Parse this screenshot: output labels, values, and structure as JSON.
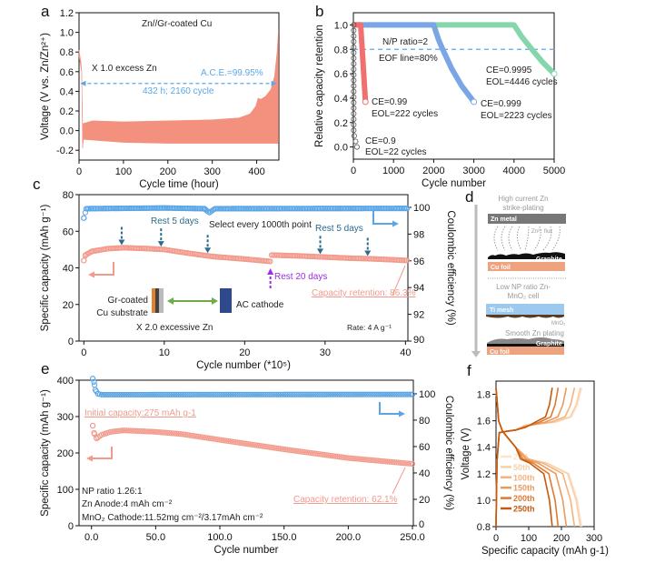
{
  "panel_labels": {
    "a": "a",
    "b": "b",
    "c": "c",
    "d": "d",
    "e": "e",
    "f": "f"
  },
  "chart_data": [
    {
      "panel": "a",
      "type": "area",
      "xlabel": "Cycle time (hour)",
      "ylabel": "Voltage (V vs. Zn/Zn²⁺)",
      "xlim": [
        0,
        450
      ],
      "ylim": [
        -0.3,
        1.2
      ],
      "x_tick_labels": [
        "0",
        "100",
        "200",
        "300",
        "400"
      ],
      "y_tick_labels": [
        "-0.2",
        "0.0",
        "0.2",
        "0.4",
        "0.6",
        "0.8",
        "1.0",
        "1.2"
      ],
      "color": "#f4907e",
      "upper": [
        [
          0,
          0.82
        ],
        [
          4,
          0.7
        ],
        [
          6,
          0.62
        ],
        [
          8,
          0.07
        ],
        [
          30,
          0.1
        ],
        [
          100,
          0.09
        ],
        [
          200,
          0.1
        ],
        [
          300,
          0.11
        ],
        [
          360,
          0.13
        ],
        [
          385,
          0.17
        ],
        [
          398,
          0.25
        ],
        [
          403,
          0.33
        ],
        [
          410,
          0.32
        ],
        [
          420,
          0.35
        ],
        [
          432,
          0.42
        ],
        [
          440,
          0.55
        ],
        [
          446,
          0.8
        ],
        [
          449,
          1.02
        ]
      ],
      "lower": [
        [
          0,
          0.75
        ],
        [
          6,
          0.6
        ],
        [
          8,
          -0.18
        ],
        [
          10,
          -0.09
        ],
        [
          100,
          -0.12
        ],
        [
          200,
          -0.13
        ],
        [
          300,
          -0.13
        ],
        [
          449,
          -0.13
        ]
      ],
      "annotations": {
        "title": "Zn//Gr-coated Cu",
        "excess": "X 1.0 excess Zn",
        "ace": "A.C.E.=99.95%",
        "duration": "432 h; 2160 cycle"
      },
      "arrow_color": "#5aa8e8"
    },
    {
      "panel": "b",
      "type": "line",
      "xlabel": "Cycle number",
      "ylabel": "Relative capacity retention",
      "xlim": [
        0,
        5000
      ],
      "ylim": [
        -0.1,
        1.1
      ],
      "x_tick_labels": [
        "0",
        "1000",
        "2000",
        "3000",
        "4000",
        "5000"
      ],
      "y_tick_labels": [
        "0.0",
        "0.2",
        "0.4",
        "0.6",
        "0.8",
        "1.0"
      ],
      "eol_line": 0.8,
      "series": [
        {
          "ce": "CE=0.9",
          "eol": "EOL=22 cycles",
          "color": "#555555",
          "style": "circles",
          "points": [
            [
              0,
              1
            ],
            [
              22,
              0
            ]
          ]
        },
        {
          "ce": "CE=0.99",
          "eol": "EOL=222 cycles",
          "color": "#f07070",
          "points": [
            [
              0,
              1
            ],
            [
              180,
              1
            ],
            [
              220,
              0.8
            ],
            [
              300,
              0.37
            ]
          ]
        },
        {
          "ce": "CE=0.999",
          "eol": "EOL=2223 cycles",
          "color": "#7ba6e6",
          "points": [
            [
              0,
              1
            ],
            [
              2000,
              1
            ],
            [
              2120,
              0.88
            ],
            [
              2223,
              0.8
            ],
            [
              2450,
              0.64
            ],
            [
              2700,
              0.5
            ],
            [
              3000,
              0.37
            ]
          ]
        },
        {
          "ce": "CE=0.9995",
          "eol": "EOL=4446 cycles",
          "color": "#85d6aa",
          "points": [
            [
              0,
              1
            ],
            [
              4000,
              1
            ],
            [
              4200,
              0.9
            ],
            [
              4446,
              0.8
            ],
            [
              4700,
              0.7
            ],
            [
              5000,
              0.6
            ]
          ]
        }
      ],
      "annotations": {
        "np": "N/P ratio=2",
        "eof": "EOF line=80%"
      }
    },
    {
      "panel": "c",
      "type": "scatter",
      "xlabel": "Cycle number (*10⁵)",
      "ylabel": "Specific capacity (mAh g⁻¹)",
      "y2label": "Coulombic efficiency (%)",
      "xlim": [
        -0.6,
        40.3
      ],
      "ylim": [
        0,
        80
      ],
      "y2lim": [
        90,
        100.95
      ],
      "x_tick_labels": [
        "0",
        "10",
        "20",
        "30",
        "40"
      ],
      "y_tick_labels": [
        "0",
        "20",
        "40",
        "60",
        "80"
      ],
      "y2_tick_labels": [
        "90",
        "92",
        "94",
        "96",
        "98",
        "100"
      ],
      "capacity": [
        [
          0,
          44
        ],
        [
          0.2,
          47
        ],
        [
          1,
          49
        ],
        [
          3,
          50.5
        ],
        [
          5,
          51
        ],
        [
          8,
          50.5
        ],
        [
          10,
          50
        ],
        [
          13,
          48
        ],
        [
          16,
          46.2
        ],
        [
          20,
          44.8
        ],
        [
          23.2,
          43.5
        ],
        [
          23.3,
          47
        ],
        [
          27,
          46.5
        ],
        [
          29.4,
          46
        ],
        [
          33,
          45.3
        ],
        [
          35.3,
          45
        ],
        [
          38,
          44.5
        ],
        [
          40.2,
          44
        ]
      ],
      "coulombic_efficiency": [
        [
          0,
          99.2
        ],
        [
          0.3,
          99.9
        ],
        [
          10,
          99.95
        ],
        [
          15,
          99.9
        ],
        [
          15.6,
          99.6
        ],
        [
          16.3,
          99.9
        ],
        [
          40.2,
          99.92
        ]
      ],
      "capacity_color": "#f29a8c",
      "ce_color": "#5aa5e6",
      "rest_arrows_x": [
        4.7,
        9.6,
        15.4,
        29.4,
        35.3
      ],
      "rest_long_x": 23.2,
      "annotations": {
        "select": "Select every 1000th point",
        "rest1": "Rest 5 days",
        "rest2": "Rest 5 days",
        "rest20": "Rest 20 days",
        "retention": "Capacity retention: 86.3%",
        "anode1": "Gr-coated",
        "anode2": "Cu substrate",
        "cathode": "AC cathode",
        "excess": "X 2.0 excessive Zn",
        "rate": "Rate: 4 A g⁻¹"
      },
      "rest_color": "#2d6b8a",
      "rest20_color": "#9b30e0"
    },
    {
      "panel": "e",
      "type": "scatter",
      "xlabel": "Cycle number",
      "ylabel": "Specific capacity (mAh g⁻¹)",
      "y2label": "Coulombic efficiency (%)",
      "xlim": [
        -9.7,
        250.7
      ],
      "ylim": [
        0,
        400
      ],
      "y2lim": [
        0,
        110.3
      ],
      "x_tick_labels": [
        "0.0",
        "50.0",
        "100.0",
        "150.0",
        "200.0",
        "250.0"
      ],
      "y_tick_labels": [
        "0",
        "100",
        "200",
        "300",
        "400"
      ],
      "y2_tick_labels": [
        "0",
        "20",
        "40",
        "60",
        "80",
        "100"
      ],
      "capacity": [
        [
          1,
          275
        ],
        [
          2,
          255
        ],
        [
          4,
          240
        ],
        [
          8,
          250
        ],
        [
          15,
          258
        ],
        [
          25,
          262
        ],
        [
          50,
          258
        ],
        [
          70,
          252
        ],
        [
          100,
          236
        ],
        [
          150,
          210
        ],
        [
          200,
          186
        ],
        [
          250,
          170
        ]
      ],
      "coulombic_efficiency": [
        [
          1,
          111.5
        ],
        [
          2,
          109
        ],
        [
          3,
          103
        ],
        [
          5,
          100
        ],
        [
          8,
          99.3
        ],
        [
          250,
          99.5
        ]
      ],
      "capacity_color": "#f29a8c",
      "ce_color": "#5aa5e6",
      "annotations": {
        "initial": "Initial capacity:275 mAh g-1",
        "np": "NP ratio 1.26:1",
        "anode": "Zn Anode:4 mAh cm⁻²",
        "cathode": "MnO₂ Cathode:11.52mg cm⁻²/3.17mAh cm⁻²",
        "retention": "Capacity retention: 62.1%"
      }
    },
    {
      "panel": "f",
      "type": "line",
      "xlabel": "Specific capacity (mAh g-1)",
      "ylabel": "Voltage (V)",
      "xlim": [
        0,
        300
      ],
      "ylim": [
        0.8,
        1.9
      ],
      "x_tick_labels": [
        "0",
        "100",
        "200",
        "300"
      ],
      "y_tick_labels": [
        "0.8",
        "1.0",
        "1.2",
        "1.4",
        "1.6",
        "1.8"
      ],
      "legend_position": "bottom-left",
      "series": [
        {
          "name": "2nd",
          "color": "#fde3cc",
          "charge_end": 262,
          "discharge_end": 262
        },
        {
          "name": "50th",
          "color": "#f9cfa8",
          "charge_end": 258,
          "discharge_end": 258
        },
        {
          "name": "100th",
          "color": "#f5b27d",
          "charge_end": 240,
          "discharge_end": 240
        },
        {
          "name": "150th",
          "color": "#eb9a5a",
          "charge_end": 215,
          "discharge_end": 215
        },
        {
          "name": "200th",
          "color": "#e07a30",
          "charge_end": 190,
          "discharge_end": 190
        },
        {
          "name": "250th",
          "color": "#c45a10",
          "charge_end": 172,
          "discharge_end": 172
        }
      ]
    }
  ],
  "schematic_d": {
    "top_title_1": "High current Zn",
    "top_title_2": "strike-plating",
    "zn_metal": "Zn metal",
    "flux": "Zn²⁺ flux",
    "graphite_1": "Graphite",
    "cu_foil_1": "Cu foil",
    "bottom_title_1": "Low NP ratio Zn-",
    "bottom_title_2": "MnO₂ cell",
    "ti_mesh": "Ti mesh",
    "mno2": "MnO₂",
    "smooth": "Smooth Zn plating",
    "graphite_2": "Graphite",
    "cu_foil_2": "Cu foil"
  }
}
